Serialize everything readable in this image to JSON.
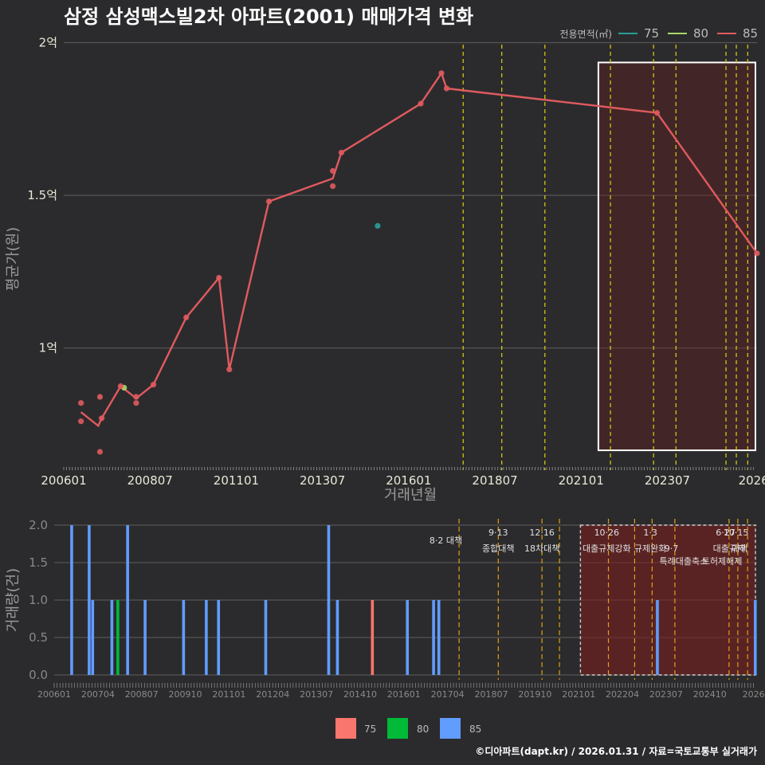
{
  "title": "삼정 삼성맥스빌2차 아파트(2001) 매매가격 변화",
  "footer": "©디아파트(dapt.kr) / 2026.01.31 / 자료=국토교통부 실거래가",
  "colors": {
    "s75": "#2a9d9a",
    "s80": "#a8d86a",
    "s85": "#e05a5f",
    "bar75": "#f8766d",
    "bar80": "#00ba38",
    "bar85": "#619cff",
    "policy": "#e0d010",
    "policy_bottom": "#e0a010"
  },
  "chart_data": [
    {
      "type": "line",
      "title": "삼정 삼성맥스빌2차 아파트(2001) 매매가격 변화",
      "xlabel": "거래년월",
      "ylabel": "평균가(원)",
      "xlim": [
        2006.0,
        2026.1
      ],
      "ylim": [
        0.6,
        2.03
      ],
      "y_unit": "억",
      "y_ticks": [
        {
          "v": 1,
          "label": "1억"
        },
        {
          "v": 1.5,
          "label": "1.5억"
        },
        {
          "v": 2,
          "label": "2억"
        }
      ],
      "x_ticks": [
        {
          "v": 2006.0,
          "label": "200601"
        },
        {
          "v": 2008.5,
          "label": "200807"
        },
        {
          "v": 2011.0,
          "label": "201101"
        },
        {
          "v": 2013.5,
          "label": "201307"
        },
        {
          "v": 2016.0,
          "label": "201601"
        },
        {
          "v": 2018.5,
          "label": "201807"
        },
        {
          "v": 2021.0,
          "label": "202101"
        },
        {
          "v": 2023.5,
          "label": "202307"
        },
        {
          "v": 2026.0,
          "label": "2026"
        }
      ],
      "legend_title": "전용면적(㎡)",
      "legend": [
        "75",
        "80",
        "85"
      ],
      "legend_position": "top-right",
      "series": [
        {
          "name": "75",
          "points": [
            [
              2015.1,
              1.4
            ]
          ],
          "line": []
        },
        {
          "name": "80",
          "points": [
            [
              2007.75,
              0.87
            ]
          ],
          "line": []
        },
        {
          "name": "85",
          "points": [
            [
              2006.5,
              0.82
            ],
            [
              2006.5,
              0.76
            ],
            [
              2007.05,
              0.84
            ],
            [
              2007.05,
              0.66
            ],
            [
              2007.1,
              0.77
            ],
            [
              2007.65,
              0.875
            ],
            [
              2008.1,
              0.84
            ],
            [
              2008.1,
              0.82
            ],
            [
              2008.6,
              0.88
            ],
            [
              2009.55,
              1.1
            ],
            [
              2010.5,
              1.23
            ],
            [
              2010.8,
              0.93
            ],
            [
              2011.95,
              1.48
            ],
            [
              2013.8,
              1.58
            ],
            [
              2013.8,
              1.53
            ],
            [
              2014.05,
              1.64
            ],
            [
              2016.35,
              1.8
            ],
            [
              2016.95,
              1.9
            ],
            [
              2017.1,
              1.85
            ],
            [
              2023.2,
              1.77
            ],
            [
              2026.1,
              1.31
            ]
          ],
          "line": [
            [
              2006.5,
              0.79
            ],
            [
              2007.0,
              0.745
            ],
            [
              2007.1,
              0.77
            ],
            [
              2007.65,
              0.875
            ],
            [
              2008.1,
              0.835
            ],
            [
              2008.6,
              0.88
            ],
            [
              2009.55,
              1.1
            ],
            [
              2010.5,
              1.23
            ],
            [
              2010.8,
              0.93
            ],
            [
              2011.95,
              1.48
            ],
            [
              2013.8,
              1.555
            ],
            [
              2014.05,
              1.64
            ],
            [
              2016.35,
              1.8
            ],
            [
              2016.95,
              1.9
            ],
            [
              2017.1,
              1.85
            ],
            [
              2023.2,
              1.77
            ],
            [
              2026.1,
              1.31
            ]
          ]
        }
      ],
      "policy_lines": [
        2017.58,
        2018.7,
        2019.95,
        2021.85,
        2023.1,
        2023.75,
        2025.2,
        2025.5,
        2025.83
      ],
      "highlight_range": [
        2021.0,
        2026.1
      ]
    },
    {
      "type": "bar",
      "xlabel": "",
      "ylabel": "거래량(건)",
      "xlim": [
        2006.0,
        2026.1
      ],
      "ylim": [
        0,
        2
      ],
      "y_ticks": [
        {
          "v": 0,
          "label": "0.0"
        },
        {
          "v": 0.5,
          "label": "0.5"
        },
        {
          "v": 1,
          "label": "1.0"
        },
        {
          "v": 1.5,
          "label": "1.5"
        },
        {
          "v": 2,
          "label": "2.0"
        }
      ],
      "x_ticks": [
        {
          "v": 2006.0,
          "label": "200601"
        },
        {
          "v": 2007.25,
          "label": "200704"
        },
        {
          "v": 2008.5,
          "label": "200807"
        },
        {
          "v": 2009.75,
          "label": "200910"
        },
        {
          "v": 2011.0,
          "label": "201101"
        },
        {
          "v": 2012.25,
          "label": "201204"
        },
        {
          "v": 2013.5,
          "label": "201307"
        },
        {
          "v": 2014.75,
          "label": "201410"
        },
        {
          "v": 2016.0,
          "label": "201601"
        },
        {
          "v": 2017.25,
          "label": "201704"
        },
        {
          "v": 2018.5,
          "label": "201807"
        },
        {
          "v": 2019.75,
          "label": "201910"
        },
        {
          "v": 2021.0,
          "label": "202101"
        },
        {
          "v": 2022.25,
          "label": "202204"
        },
        {
          "v": 2023.5,
          "label": "202307"
        },
        {
          "v": 2024.75,
          "label": "202410"
        },
        {
          "v": 2026.0,
          "label": "2026"
        }
      ],
      "legend": [
        "75",
        "80",
        "85"
      ],
      "legend_position": "bottom",
      "bars": [
        {
          "s": "85",
          "x": 2006.5,
          "v": 2
        },
        {
          "s": "85",
          "x": 2007.0,
          "v": 2
        },
        {
          "s": "85",
          "x": 2007.1,
          "v": 1
        },
        {
          "s": "85",
          "x": 2007.65,
          "v": 1
        },
        {
          "s": "80",
          "x": 2007.82,
          "v": 1
        },
        {
          "s": "85",
          "x": 2008.1,
          "v": 2
        },
        {
          "s": "85",
          "x": 2008.6,
          "v": 1
        },
        {
          "s": "85",
          "x": 2009.7,
          "v": 1
        },
        {
          "s": "85",
          "x": 2010.35,
          "v": 1
        },
        {
          "s": "85",
          "x": 2010.7,
          "v": 1
        },
        {
          "s": "85",
          "x": 2012.05,
          "v": 1
        },
        {
          "s": "85",
          "x": 2013.85,
          "v": 2
        },
        {
          "s": "85",
          "x": 2014.1,
          "v": 1
        },
        {
          "s": "75",
          "x": 2015.1,
          "v": 1
        },
        {
          "s": "85",
          "x": 2016.1,
          "v": 1
        },
        {
          "s": "85",
          "x": 2016.85,
          "v": 1
        },
        {
          "s": "85",
          "x": 2017.0,
          "v": 1
        },
        {
          "s": "85",
          "x": 2023.25,
          "v": 1
        },
        {
          "s": "85",
          "x": 2026.05,
          "v": 1
        }
      ],
      "policy_lines": [
        2017.58,
        2018.7,
        2019.95,
        2020.45,
        2021.85,
        2022.6,
        2023.1,
        2023.75,
        2025.3,
        2025.55,
        2025.83
      ],
      "highlight_range": [
        2021.0,
        2026.1
      ],
      "annotations": [
        {
          "x": 2017.2,
          "row": 0,
          "text": "8·2 대책"
        },
        {
          "x": 2018.7,
          "row": -1,
          "text": "9·13"
        },
        {
          "x": 2018.7,
          "row": 0.6,
          "text": "종합대책"
        },
        {
          "x": 2019.95,
          "row": -1,
          "text": "12·16"
        },
        {
          "x": 2019.95,
          "row": 0.6,
          "text": "18차대책"
        },
        {
          "x": 2021.8,
          "row": -1,
          "text": "10·26"
        },
        {
          "x": 2021.8,
          "row": 0.6,
          "text": "대출규제강화"
        },
        {
          "x": 2023.05,
          "row": -1,
          "text": "1·3"
        },
        {
          "x": 2023.05,
          "row": 0.6,
          "text": "규제완화"
        },
        {
          "x": 2023.65,
          "row": 0.6,
          "text": "9·7"
        },
        {
          "x": 2024.0,
          "row": 2.0,
          "text": "특례대출축소"
        },
        {
          "x": 2025.1,
          "row": 2.0,
          "text": "토허제해제"
        },
        {
          "x": 2025.2,
          "row": -1,
          "text": "6·27"
        },
        {
          "x": 2025.5,
          "row": -1,
          "text": "10·15"
        },
        {
          "x": 2025.3,
          "row": 0.6,
          "text": "대출규제"
        },
        {
          "x": 2025.6,
          "row": 0.6,
          "text": "대책"
        }
      ]
    }
  ]
}
